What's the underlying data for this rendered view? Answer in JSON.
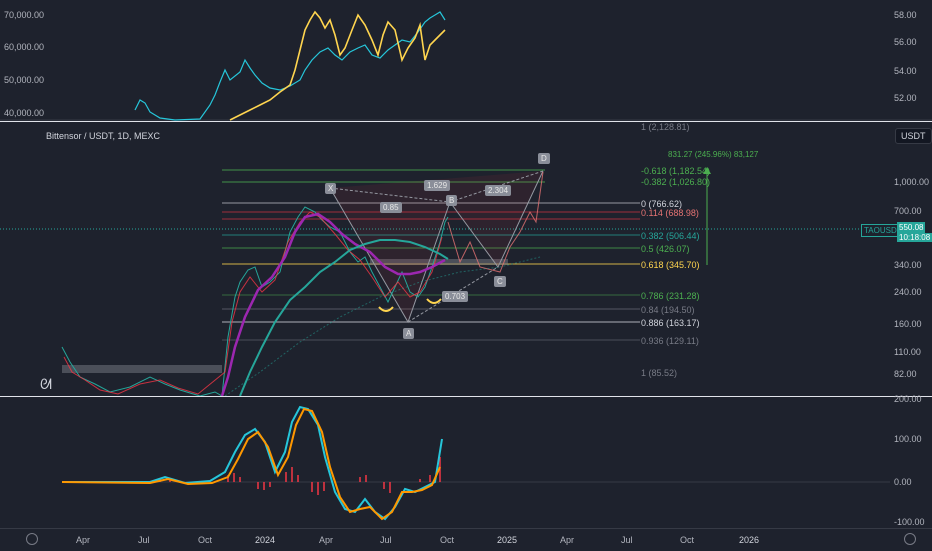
{
  "top_pane": {
    "left_axis": [
      "70,000.00",
      "60,000.00",
      "50,000.00",
      "40,000.00"
    ],
    "right_axis": [
      "58.00",
      "56.00",
      "54.00",
      "52.00"
    ]
  },
  "main_pane": {
    "symbol_title": "Bittensor / USDT, 1D, MEXC",
    "currency_badge": "USDT",
    "ticker_tag": "TAOUSDT",
    "last_price": "550.08",
    "countdown": "10:18:08",
    "right_axis": [
      "1,000.00",
      "700.00",
      "340.00",
      "240.00",
      "160.00",
      "110.00",
      "82.00"
    ],
    "fib_labels": [
      "1 (2,128.81)",
      "-0.618 (1,182.54)",
      "-0.382 (1,026.80)",
      "0 (766.62)",
      "0.114 (688.98)",
      "0.382 (506.44)",
      "0.5 (426.07)",
      "0.618 (345.70)",
      "0.786 (231.28)",
      "0.84 (194.50)",
      "0.886 (163.17)",
      "0.936 (129.11)",
      "1 (85.52)"
    ],
    "measure_label": "831.27 (245.96%) 83,127",
    "points": [
      "X",
      "A",
      "B",
      "C",
      "D"
    ],
    "ratios": [
      "0.85",
      "0.703",
      "1.629",
      "2.304"
    ]
  },
  "indicator_pane": {
    "right_axis": [
      "200.00",
      "100.00",
      "0.00",
      "-100.00"
    ]
  },
  "time_axis": [
    "Apr",
    "Jul",
    "Oct",
    "2024",
    "Apr",
    "Jul",
    "Oct",
    "2025",
    "Apr",
    "Jul",
    "Oct",
    "2026"
  ],
  "colors": {
    "background": "#1e222d",
    "bull_line": "#ffd54f",
    "bear_line": "#26c6da",
    "ma_purple": "#9c27b0",
    "ma_teal": "#26a69a",
    "fib_green": "#4caf50",
    "fib_gold": "#ffd54f",
    "indicator_red": "#f23645"
  }
}
